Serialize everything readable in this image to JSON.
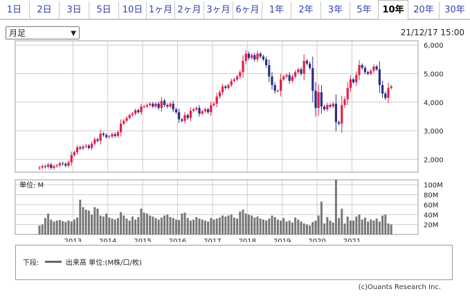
{
  "tabs": [
    "1日",
    "2日",
    "3日",
    "5日",
    "10日",
    "1ヶ月",
    "2ヶ月",
    "3ヶ月",
    "6ヶ月",
    "1年",
    "2年",
    "3年",
    "5年",
    "10年",
    "20年",
    "30年"
  ],
  "active_tab": "10年",
  "period_select": "月足",
  "timestamp": "21/12/17 15:00",
  "volume_unit_label": "単位: M",
  "legend": {
    "prefix": "下段:",
    "label": "出来高 単位:(M株/口/枚)"
  },
  "credit": "(c)Ouants Research Inc.",
  "colors": {
    "up": "#e0204a",
    "down": "#2c2c8c",
    "volume": "#777777",
    "grid": "#cccccc"
  },
  "chart_data": {
    "type": "candlestick",
    "x_start": "2012-01",
    "x_tick_labels": [
      "2013",
      "2014",
      "2015",
      "2016",
      "2017",
      "2018",
      "2019",
      "2020",
      "2021"
    ],
    "price_axis": {
      "ticks": [
        "2,000",
        "3,000",
        "4,000",
        "5,000",
        "6,000"
      ],
      "ylim": [
        1550,
        6150
      ]
    },
    "volume_axis": {
      "ticks": [
        "20M",
        "40M",
        "60M",
        "80M",
        "100M"
      ],
      "ylim": [
        0,
        110
      ]
    },
    "close": [
      1710,
      1760,
      1740,
      1820,
      1700,
      1760,
      1790,
      1860,
      1840,
      1780,
      1900,
      2150,
      2250,
      2420,
      2380,
      2450,
      2480,
      2400,
      2550,
      2700,
      2650,
      2900,
      2850,
      2780,
      2800,
      2880,
      2820,
      2950,
      3250,
      3350,
      3450,
      3550,
      3600,
      3720,
      3650,
      3850,
      3850,
      3900,
      3950,
      3850,
      3950,
      3800,
      4050,
      3900,
      3850,
      3950,
      3750,
      3650,
      3400,
      3350,
      3550,
      3450,
      3700,
      3750,
      3800,
      3600,
      3680,
      3750,
      3650,
      3900,
      3950,
      4200,
      4350,
      4550,
      4500,
      4600,
      4750,
      4800,
      4900,
      5050,
      5450,
      5700,
      5550,
      5650,
      5500,
      5700,
      5600,
      5500,
      5300,
      4900,
      4600,
      4400,
      4400,
      4800,
      4900,
      4950,
      4750,
      4900,
      5050,
      5150,
      5000,
      5450,
      5350,
      5200,
      4400,
      3800,
      4350,
      3850,
      3750,
      3900,
      3850,
      3950,
      3300,
      3250,
      3900,
      4100,
      4500,
      4800,
      4700,
      4950,
      5300,
      5200,
      5050,
      5000,
      5100,
      5250,
      5150,
      4600,
      4300,
      4150,
      4500,
      4550
    ],
    "volume": [
      18,
      20,
      33,
      42,
      30,
      26,
      28,
      29,
      27,
      25,
      28,
      26,
      30,
      34,
      70,
      55,
      50,
      48,
      40,
      55,
      52,
      38,
      36,
      42,
      34,
      32,
      30,
      33,
      45,
      38,
      32,
      28,
      36,
      30,
      35,
      52,
      44,
      42,
      38,
      36,
      33,
      30,
      34,
      38,
      40,
      35,
      33,
      30,
      29,
      42,
      44,
      33,
      28,
      30,
      35,
      32,
      30,
      28,
      26,
      33,
      30,
      32,
      34,
      38,
      36,
      38,
      40,
      34,
      32,
      46,
      50,
      42,
      40,
      38,
      34,
      36,
      32,
      30,
      28,
      32,
      38,
      35,
      30,
      28,
      33,
      26,
      28,
      24,
      34,
      30,
      26,
      22,
      20,
      18,
      25,
      28,
      38,
      66,
      22,
      35,
      28,
      24,
      110,
      33,
      52,
      22,
      36,
      28,
      28,
      36,
      40,
      30,
      34,
      26,
      30,
      28,
      32,
      26,
      38,
      40,
      22,
      20
    ]
  }
}
